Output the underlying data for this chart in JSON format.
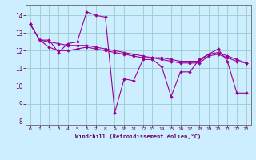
{
  "xlabel": "Windchill (Refroidissement éolien,°C)",
  "bg_color": "#cceeff",
  "line_color": "#990099",
  "grid_color": "#99cccc",
  "axis_color": "#660066",
  "tick_color": "#660066",
  "ylim": [
    7.8,
    14.6
  ],
  "xlim": [
    -0.5,
    23.5
  ],
  "yticks": [
    8,
    9,
    10,
    11,
    12,
    13,
    14
  ],
  "xticks": [
    0,
    1,
    2,
    3,
    4,
    5,
    6,
    7,
    8,
    9,
    10,
    11,
    12,
    13,
    14,
    15,
    16,
    17,
    18,
    19,
    20,
    21,
    22,
    23
  ],
  "series1": [
    13.5,
    12.6,
    12.6,
    11.9,
    12.4,
    12.5,
    14.2,
    14.0,
    13.9,
    8.5,
    10.4,
    10.3,
    11.5,
    11.5,
    11.1,
    9.4,
    10.8,
    10.8,
    11.5,
    11.8,
    12.1,
    11.4,
    9.6,
    9.6
  ],
  "series2": [
    13.5,
    12.6,
    12.2,
    12.0,
    12.0,
    12.1,
    12.2,
    12.1,
    12.0,
    11.9,
    11.8,
    11.7,
    11.6,
    11.6,
    11.5,
    11.4,
    11.3,
    11.3,
    11.3,
    11.7,
    11.8,
    11.6,
    11.4,
    11.3
  ],
  "series3": [
    13.5,
    12.6,
    12.5,
    12.4,
    12.3,
    12.3,
    12.3,
    12.2,
    12.1,
    12.0,
    11.9,
    11.8,
    11.7,
    11.6,
    11.6,
    11.5,
    11.4,
    11.4,
    11.4,
    11.8,
    11.9,
    11.7,
    11.5,
    11.3
  ]
}
